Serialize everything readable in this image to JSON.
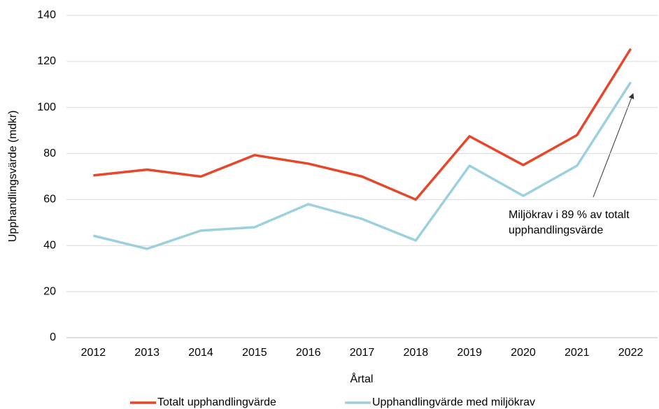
{
  "chart_data": {
    "type": "line",
    "x_label": "Årtal",
    "y_label": "Upphandlingsvärde  (mdkr)",
    "categories": [
      "2012",
      "2013",
      "2014",
      "2015",
      "2016",
      "2017",
      "2018",
      "2019",
      "2020",
      "2021",
      "2022"
    ],
    "series": [
      {
        "name": "Totalt upphandlingvärde",
        "color": "#e8462a",
        "values": [
          70.5,
          73,
          70,
          79.3,
          75.6,
          70,
          60,
          87.5,
          75,
          88,
          125.5
        ]
      },
      {
        "name": "Upphandlingvärde med miljökrav",
        "color": "#9dd0de",
        "values": [
          44.3,
          38.6,
          46.5,
          48,
          58,
          51.6,
          42.2,
          74.7,
          61.6,
          74.7,
          111
        ]
      }
    ],
    "ylim": [
      0,
      140
    ],
    "yticks": [
      0,
      20,
      40,
      60,
      80,
      100,
      120,
      140
    ],
    "grid": true,
    "annotation": [
      "Miljökrav  i 89 % av totalt",
      "upphandlingsvärde"
    ]
  }
}
